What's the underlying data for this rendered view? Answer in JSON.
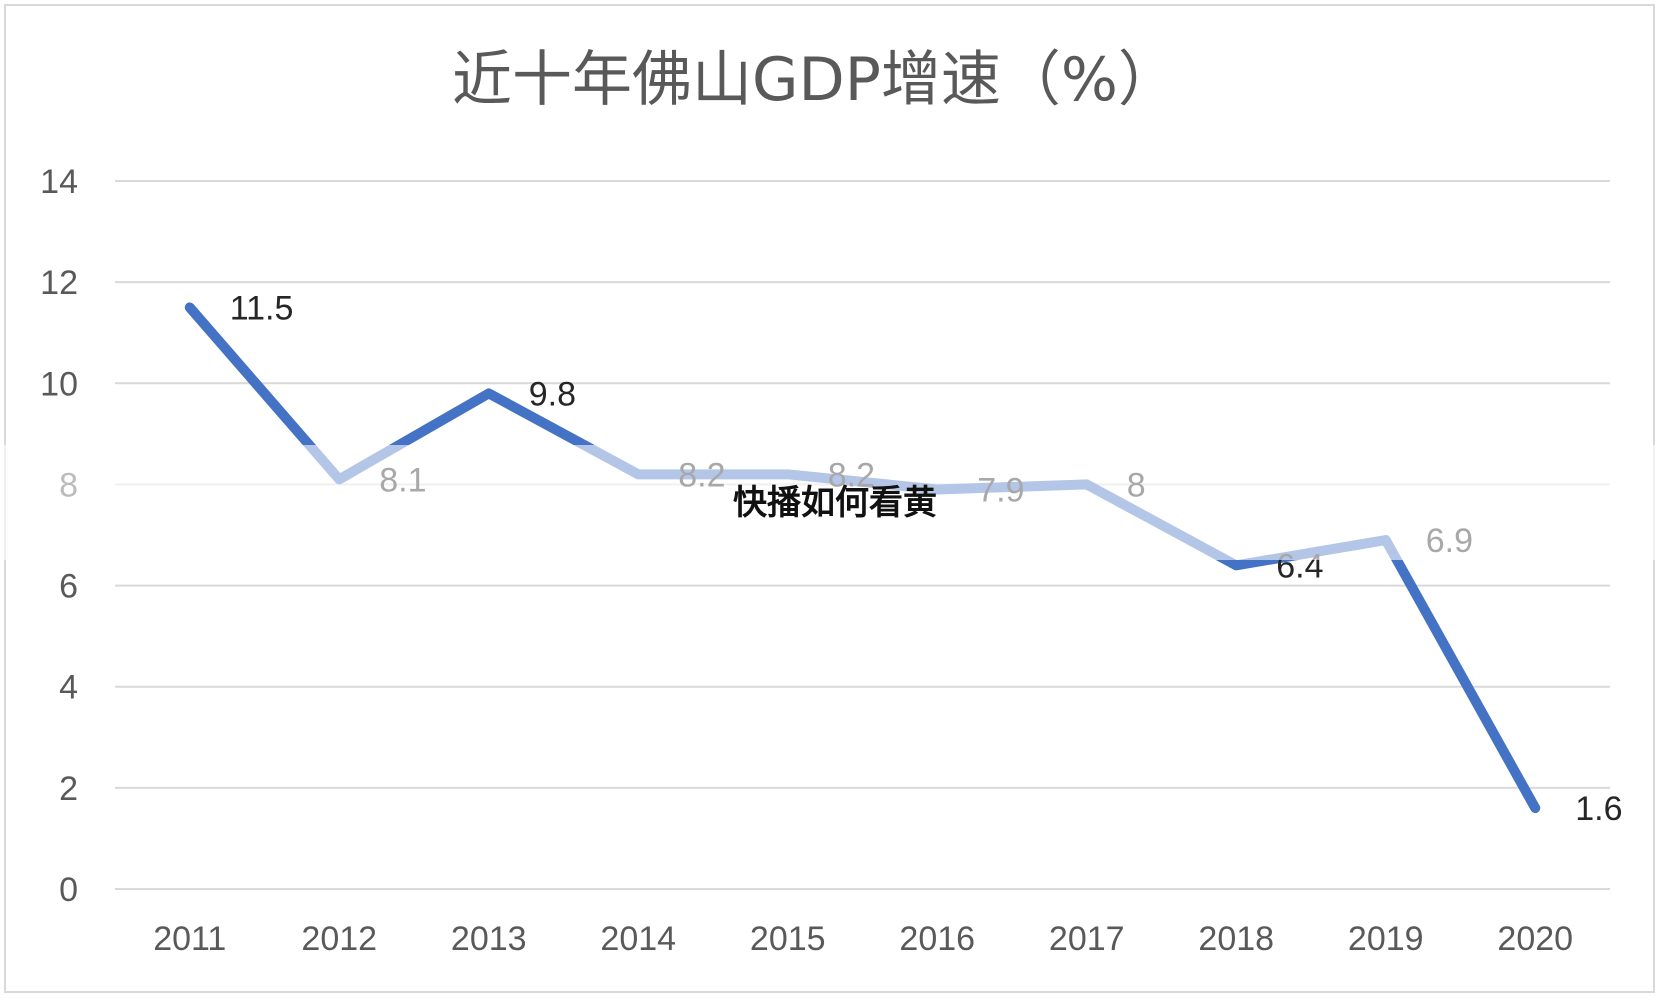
{
  "overlay_text": "快播如何看黄",
  "chart_data": {
    "type": "line",
    "title": "近十年佛山GDP增速（%）",
    "categories": [
      "2011",
      "2012",
      "2013",
      "2014",
      "2015",
      "2016",
      "2017",
      "2018",
      "2019",
      "2020"
    ],
    "values": [
      11.5,
      8.1,
      9.8,
      8.2,
      8.2,
      7.9,
      8,
      6.4,
      6.9,
      1.6
    ],
    "data_labels": [
      "11.5",
      "8.1",
      "9.8",
      "8.2",
      "8.2",
      "7.9",
      "8",
      "6.4",
      "6.9",
      "1.6"
    ],
    "ylim": [
      0,
      14
    ],
    "yticks": [
      "0",
      "2",
      "4",
      "6",
      "8",
      "10",
      "12",
      "14"
    ],
    "xlabel": "",
    "ylabel": "",
    "grid": true,
    "legend": "none",
    "line_color": "#4472c4",
    "grid_color": "#d9d9d9"
  }
}
